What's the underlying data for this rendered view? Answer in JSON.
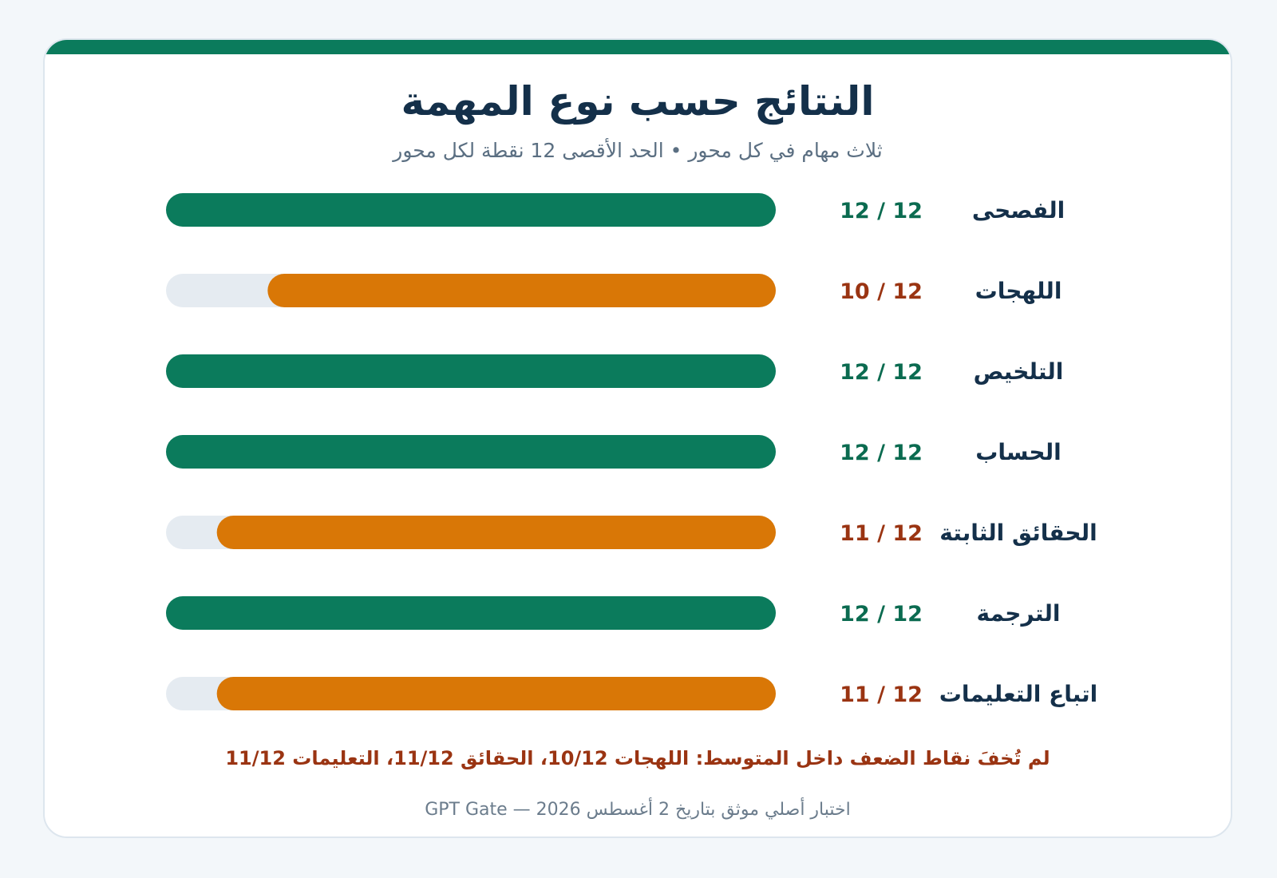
{
  "header": {
    "title": "النتائج حسب نوع المهمة",
    "subtitle": "ثلاث مهام في كل محور • الحد الأقصى 12 نقطة لكل محور"
  },
  "chart_data": {
    "type": "bar",
    "orientation": "horizontal",
    "xlim": [
      0,
      12
    ],
    "categories": [
      "الفصحى",
      "اللهجات",
      "التلخيص",
      "الحساب",
      "الحقائق الثابتة",
      "الترجمة",
      "اتباع التعليمات"
    ],
    "values": [
      12,
      10,
      12,
      12,
      11,
      12,
      11
    ],
    "max": 12,
    "score_labels": [
      "12 / 12",
      "10 / 12",
      "12 / 12",
      "12 / 12",
      "11 / 12",
      "12 / 12",
      "11 / 12"
    ],
    "grid": false,
    "legend": "none"
  },
  "colors": {
    "full": "#0b7b5c",
    "partial": "#d97706",
    "track": "#e5ebf1",
    "label_full": "#0b6b50",
    "label_partial": "#9a3412",
    "category_text": "#14304a",
    "accent_bar": "#0b7b5c"
  },
  "note": "لم تُخفَ نقاط الضعف داخل المتوسط: اللهجات 10/12، الحقائق 11/12، التعليمات 11/12",
  "footer": "اختبار أصلي موثق بتاريخ 2 أغسطس 2026 — GPT Gate"
}
